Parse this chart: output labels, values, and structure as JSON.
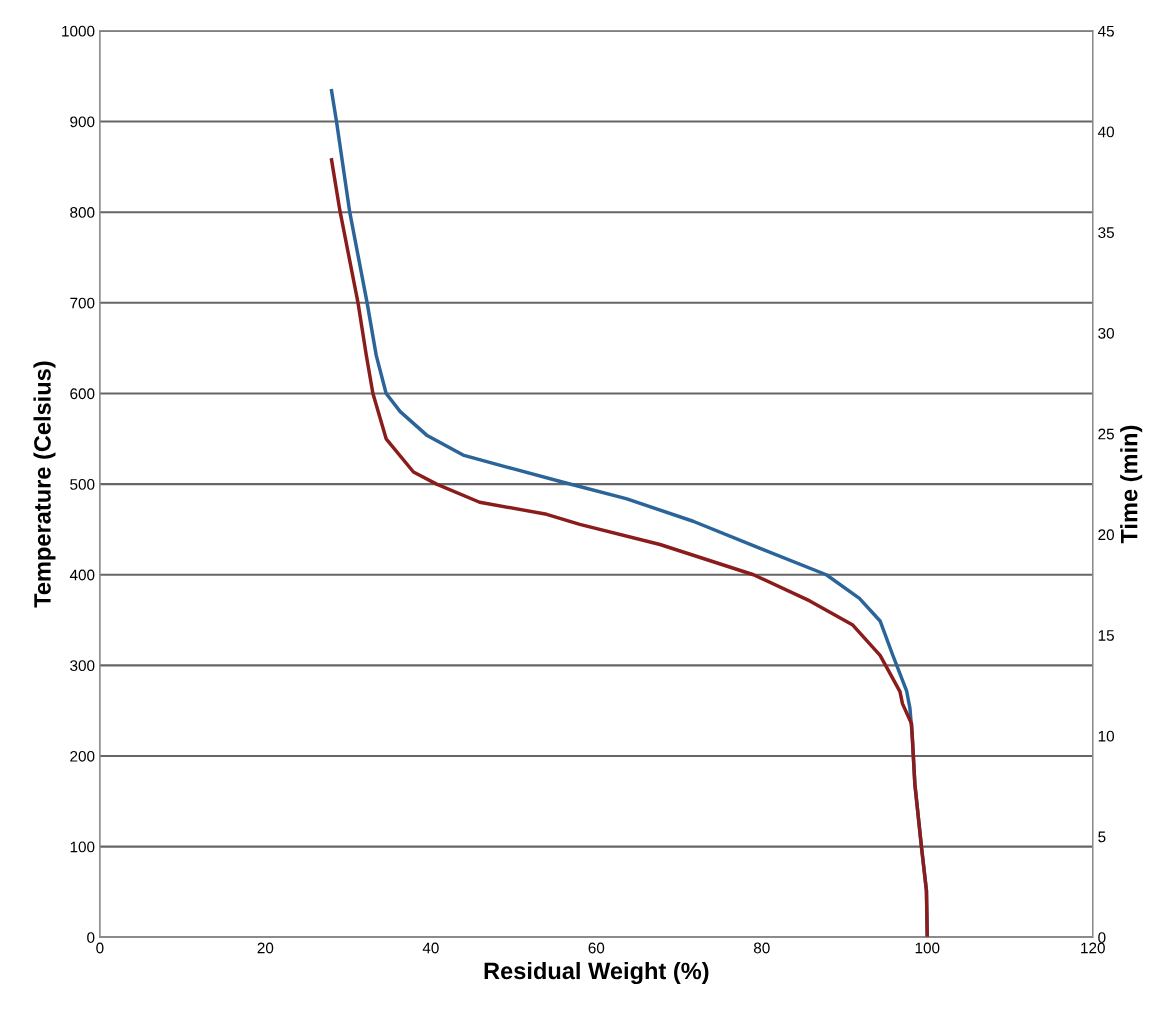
{
  "chart_data": {
    "type": "line",
    "xlabel": "Residual Weight (%)",
    "ylabel": "Temperature (Celsius)",
    "y2label": "Time (min)",
    "xlim": [
      0,
      120
    ],
    "xticks": [
      0,
      20,
      40,
      60,
      80,
      100,
      120
    ],
    "ylim": [
      0,
      1000
    ],
    "yticks": [
      0,
      100,
      200,
      300,
      400,
      500,
      600,
      700,
      800,
      900,
      1000
    ],
    "y2lim": [
      0,
      45
    ],
    "y2ticks": [
      0,
      5,
      10,
      15,
      20,
      25,
      30,
      35,
      40,
      45
    ],
    "grid": "y",
    "marker": "none",
    "line_style": "solid",
    "series": [
      {
        "color": "#2a6499",
        "x": [
          28.0,
          28.6,
          30.2,
          32.3,
          33.4,
          34.6,
          36.3,
          39.5,
          43.9,
          49.9,
          56.0,
          63.6,
          71.7,
          79.8,
          87.8,
          91.8,
          94.3,
          95.8,
          97.5,
          97.9,
          98.2,
          98.5,
          99.3,
          99.9,
          100.0
        ],
        "values": [
          934,
          900,
          800,
          700,
          642,
          600,
          580,
          554,
          532,
          517,
          502,
          484,
          459,
          429,
          400,
          374,
          349,
          312,
          272,
          253,
          220,
          169,
          99,
          52,
          0
        ]
      },
      {
        "color": "#8b1c1c",
        "axis": "y2",
        "x": [
          28.0,
          29.0,
          31.2,
          32.2,
          33.0,
          34.6,
          37.9,
          40.7,
          45.9,
          54.0,
          58.0,
          67.7,
          79.0,
          85.8,
          91.0,
          94.3,
          96.7,
          97.0,
          98.1,
          98.5,
          99.3,
          99.9,
          100.0
        ],
        "values": [
          38.6,
          36.1,
          31.5,
          28.9,
          27.0,
          24.75,
          23.1,
          22.5,
          21.6,
          21.0,
          20.5,
          19.5,
          18.0,
          16.7,
          15.5,
          14.0,
          12.2,
          11.6,
          10.6,
          7.6,
          4.5,
          2.3,
          0
        ]
      }
    ]
  }
}
